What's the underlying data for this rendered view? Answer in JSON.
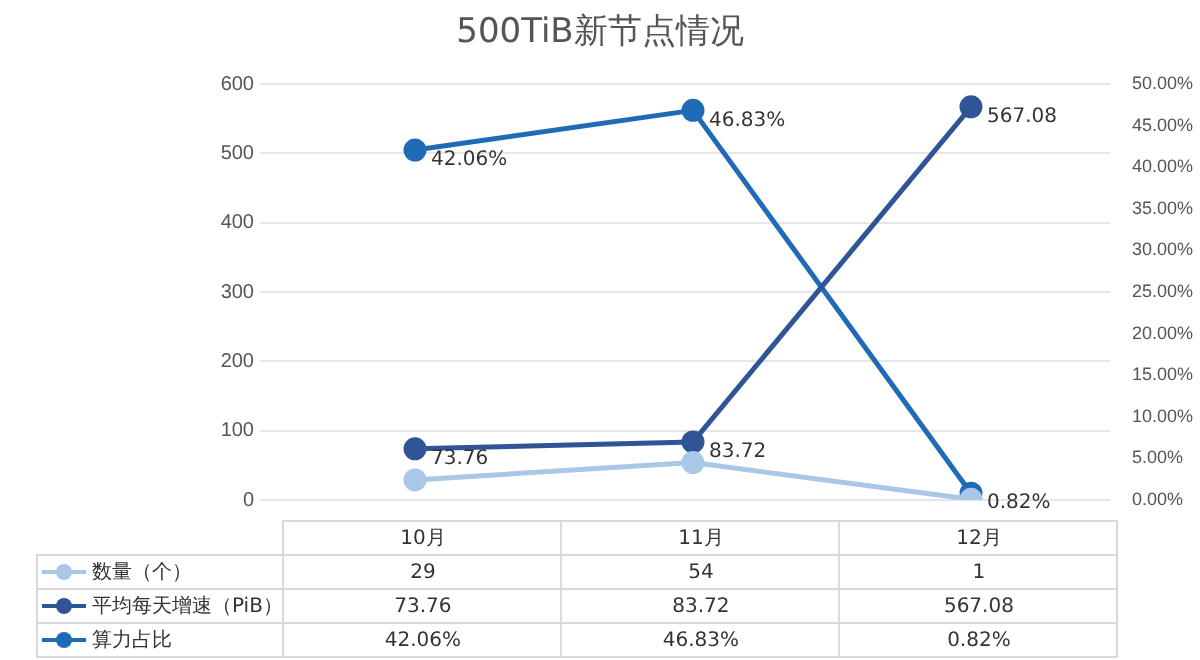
{
  "chart_data": {
    "type": "line",
    "title": "500TiB新节点情况",
    "categories": [
      "10月",
      "11月",
      "12月"
    ],
    "series": [
      {
        "name": "数量（个）",
        "color": "#a9c7e6",
        "values": [
          29,
          54,
          1
        ],
        "value_labels": [
          "29",
          "54",
          "1"
        ]
      },
      {
        "name": "平均每天增速（PiB）",
        "color": "#2f5597",
        "values": [
          73.76,
          83.72,
          567.08
        ],
        "value_labels": [
          "73.76",
          "83.72",
          "567.08"
        ],
        "data_labels": true
      },
      {
        "name": "算力占比",
        "color": "#1f6bb5",
        "axis": "y2",
        "values": [
          42.06,
          46.83,
          0.82
        ],
        "value_labels": [
          "42.06%",
          "46.83%",
          "0.82%"
        ],
        "data_labels": true
      }
    ],
    "ylim": [
      0,
      600
    ],
    "yticks": [
      0,
      100,
      200,
      300,
      400,
      500,
      600
    ],
    "y2lim": [
      0,
      50
    ],
    "y2ticks": [
      {
        "value": 0,
        "label": "0.00%"
      },
      {
        "value": 5,
        "label": "5.00%"
      },
      {
        "value": 10,
        "label": "10.00%"
      },
      {
        "value": 15,
        "label": "15.00%"
      },
      {
        "value": 20,
        "label": "20.00%"
      },
      {
        "value": 25,
        "label": "25.00%"
      },
      {
        "value": 30,
        "label": "30.00%"
      },
      {
        "value": 35,
        "label": "35.00%"
      },
      {
        "value": 40,
        "label": "40.00%"
      },
      {
        "value": 45,
        "label": "45.00%"
      },
      {
        "value": 50,
        "label": "50.00%"
      }
    ],
    "grid": "y",
    "legend": "bottom",
    "marker": "circle",
    "line_style": "solid"
  }
}
